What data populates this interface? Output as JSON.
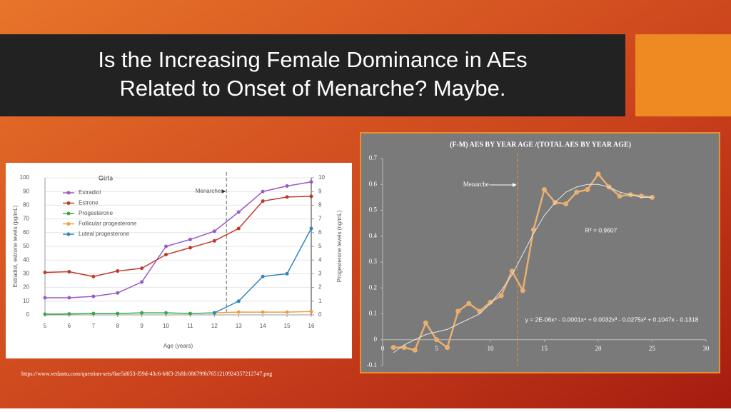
{
  "title": [
    "Is the Increasing Female Dominance in AEs",
    "Related to Onset of Menarche? Maybe."
  ],
  "source": "https://www.vedantu.com/question-sets/8ae5d053-f59d-43c6-b8f3-2b8fc086799b7651210924357212747.png",
  "chart_data": [
    {
      "type": "line",
      "title": "Girls",
      "x_label": "Age (years)",
      "y_label": "Estradiol, estrone levels (pg/mL)",
      "y2_label": "Progesterone levels (ng/mL)",
      "x": [
        5,
        6,
        7,
        8,
        9,
        10,
        11,
        12,
        13,
        14,
        15,
        16
      ],
      "xlim": [
        5,
        16
      ],
      "xticks": [
        5,
        6,
        7,
        8,
        9,
        10,
        11,
        12,
        13,
        14,
        15,
        16
      ],
      "ylim": [
        0,
        100
      ],
      "yticks": [
        0,
        10,
        20,
        30,
        40,
        50,
        60,
        70,
        80,
        90,
        100
      ],
      "y2lim": [
        0,
        10
      ],
      "y2ticks": [
        0,
        1,
        2,
        3,
        4,
        5,
        6,
        7,
        8,
        9,
        10
      ],
      "grid": true,
      "series": [
        {
          "name": "Estradiol",
          "color": "#9b59c4",
          "values": [
            12.5,
            12.5,
            13.5,
            16,
            24,
            50,
            55,
            61,
            75,
            90,
            94,
            97
          ]
        },
        {
          "name": "Estrone",
          "color": "#c0392b",
          "values": [
            31,
            31.5,
            28,
            32,
            34,
            44,
            49,
            54,
            63,
            83,
            86,
            86.5
          ]
        },
        {
          "name": "Progesterone",
          "color": "#3aa84a",
          "axis": "y2",
          "values": [
            0.05,
            0.07,
            0.1,
            0.1,
            0.15,
            0.15,
            0.1,
            0.15,
            null,
            null,
            null,
            null
          ]
        },
        {
          "name": "Follicular progesterone",
          "color": "#f39c3a",
          "axis": "y2",
          "values": [
            null,
            null,
            null,
            null,
            null,
            null,
            null,
            0.15,
            0.2,
            0.2,
            0.2,
            0.25
          ]
        },
        {
          "name": "Luteal progesterone",
          "color": "#2e86c1",
          "axis": "y2",
          "values": [
            null,
            null,
            null,
            null,
            null,
            null,
            null,
            0.15,
            1,
            2.8,
            3,
            6.3
          ]
        }
      ],
      "annotations": [
        {
          "text": "Menarche",
          "x": 12.5
        }
      ]
    },
    {
      "type": "line",
      "title": "(F-M) AES BY YEAR AGE /(TOTAL AES BY YEAR AGE)",
      "x": [
        1,
        2,
        3,
        4,
        5,
        6,
        7,
        8,
        9,
        10,
        11,
        12,
        13,
        14,
        15,
        16,
        17,
        18,
        19,
        20,
        21,
        22,
        23,
        24,
        25
      ],
      "xlim": [
        0,
        30
      ],
      "xticks": [
        0,
        5,
        10,
        15,
        20,
        25,
        30
      ],
      "ylim": [
        -0.1,
        0.7
      ],
      "yticks": [
        -0.1,
        0,
        0.1,
        0.2,
        0.3,
        0.4,
        0.5,
        0.6,
        0.7
      ],
      "grid": false,
      "series": [
        {
          "color": "#e8b070",
          "values": [
            -0.03,
            -0.03,
            -0.04,
            0.065,
            0,
            -0.03,
            0.11,
            0.14,
            0.11,
            0.145,
            0.17,
            0.265,
            0.19,
            0.425,
            0.58,
            0.53,
            0.525,
            0.57,
            0.58,
            0.64,
            0.59,
            0.555,
            0.56,
            0.555,
            0.55
          ]
        },
        {
          "color": "#e6e6e6",
          "values": [
            -0.05,
            -0.02,
            0,
            0.02,
            0.03,
            0.04,
            0.06,
            0.08,
            0.1,
            0.14,
            0.19,
            0.25,
            0.33,
            0.41,
            0.48,
            0.53,
            0.57,
            0.59,
            0.6,
            0.6,
            0.59,
            0.57,
            0.56,
            0.55,
            0.55
          ]
        }
      ],
      "annotations": [
        {
          "text": "Menarche",
          "x": 12.5
        },
        {
          "text": "R² = 0.9607"
        },
        {
          "text": "y = 2E-06x⁵ - 0.0001x⁴ + 0.0032x³ - 0.0275x² + 0.1047x - 0.1318"
        }
      ]
    }
  ]
}
